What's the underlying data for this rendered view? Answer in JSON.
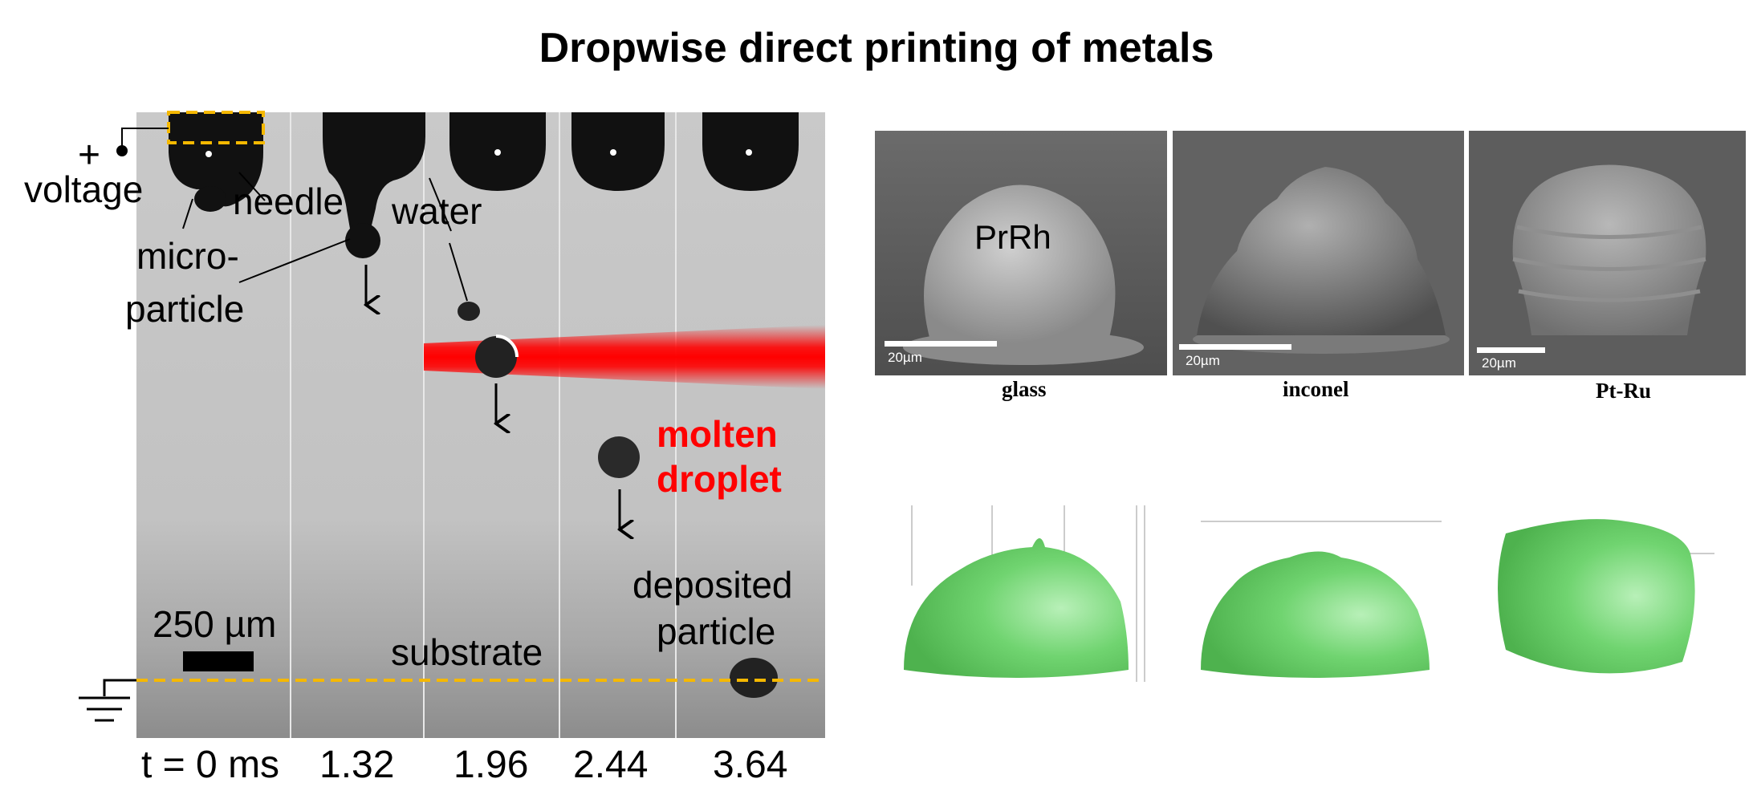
{
  "title": "Dropwise direct printing of metals",
  "left_panel": {
    "labels": {
      "plus": "+",
      "voltage": "voltage",
      "needle": "needle",
      "micro": "micro-",
      "particle": "particle",
      "water": "water",
      "molten1": "molten",
      "molten2": "droplet",
      "scale": "250 µm",
      "substrate": "substrate",
      "deposited1": "deposited",
      "deposited2": "particle"
    },
    "times": [
      "t = 0 ms",
      "1.32",
      "1.96",
      "2.44",
      "3.64"
    ],
    "colors": {
      "accent": "#ff0000",
      "dashed_line": "#f5b800"
    }
  },
  "sem_images": [
    {
      "caption": "glass",
      "scale_label": "20µm",
      "overlay": "PrRh"
    },
    {
      "caption": "inconel",
      "scale_label": "20µm"
    },
    {
      "caption": "Pt-Ru",
      "scale_label": "20µm"
    }
  ],
  "renders": {
    "color": "#6fd66f"
  }
}
